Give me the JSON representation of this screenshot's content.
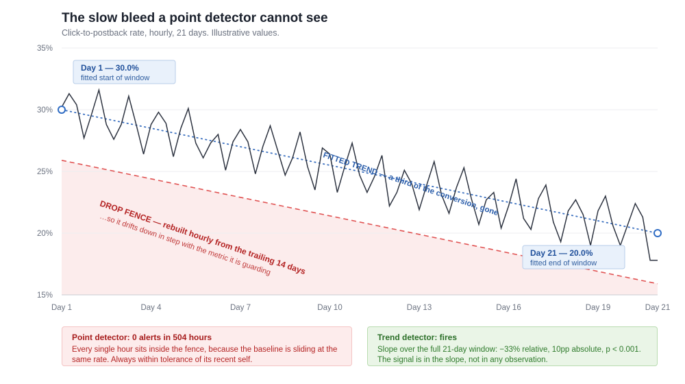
{
  "chart_data": {
    "type": "line",
    "title": "The slow bleed a point detector cannot see",
    "subtitle": "Click-to-postback rate, hourly, 21 days. Illustrative values.",
    "xlabel": "",
    "ylabel": "",
    "xlim": [
      1,
      21
    ],
    "ylim": [
      15,
      35
    ],
    "y_ticks": [
      15,
      20,
      25,
      30,
      35
    ],
    "y_tick_labels": [
      "15%",
      "20%",
      "25%",
      "30%",
      "35%"
    ],
    "x_ticks": [
      1,
      4,
      7,
      10,
      13,
      16,
      19,
      21
    ],
    "x_tick_labels": [
      "Day 1",
      "Day 4",
      "Day 7",
      "Day 10",
      "Day 13",
      "Day 16",
      "Day 19",
      "Day 21"
    ],
    "grid": "horizontal",
    "series": [
      {
        "role": "observed",
        "color": "#2d3340",
        "x": [
          1,
          1.25,
          1.5,
          1.75,
          2,
          2.25,
          2.5,
          2.75,
          3,
          3.25,
          3.5,
          3.75,
          4,
          4.25,
          4.5,
          4.75,
          5,
          5.25,
          5.5,
          5.75,
          6,
          6.25,
          6.5,
          6.75,
          7,
          7.25,
          7.5,
          7.75,
          8,
          8.25,
          8.5,
          8.75,
          9,
          9.25,
          9.5,
          9.75,
          10,
          10.25,
          10.5,
          10.75,
          11,
          11.25,
          11.5,
          11.75,
          12,
          12.25,
          12.5,
          12.75,
          13,
          13.25,
          13.5,
          13.75,
          14,
          14.25,
          14.5,
          14.75,
          15,
          15.25,
          15.5,
          15.75,
          16,
          16.25,
          16.5,
          16.75,
          17,
          17.25,
          17.5,
          17.75,
          18,
          18.25,
          18.5,
          18.75,
          19,
          19.25,
          19.5,
          19.75,
          20,
          20.25,
          20.5,
          20.75,
          21
        ],
        "y": [
          30.2,
          31.3,
          30.4,
          27.7,
          29.6,
          31.6,
          28.8,
          27.6,
          28.8,
          31.1,
          28.8,
          26.4,
          28.8,
          29.8,
          28.9,
          26.2,
          28.5,
          30.1,
          27.3,
          26.1,
          27.3,
          28.0,
          25.1,
          27.4,
          28.4,
          27.4,
          24.8,
          27.0,
          28.7,
          26.7,
          24.7,
          26.1,
          28.2,
          25.4,
          23.5,
          26.9,
          26.4,
          23.3,
          25.4,
          27.3,
          24.7,
          23.3,
          24.6,
          26.3,
          22.2,
          23.3,
          25.1,
          24.0,
          21.9,
          23.9,
          25.8,
          23.1,
          21.6,
          23.7,
          25.3,
          22.8,
          20.7,
          22.7,
          23.3,
          20.4,
          22.2,
          24.4,
          21.2,
          20.3,
          22.8,
          23.9,
          20.9,
          19.3,
          21.8,
          22.7,
          21.5,
          19.0,
          21.8,
          23.0,
          20.6,
          19.0,
          20.7,
          22.4,
          21.3,
          17.8,
          17.8
        ]
      },
      {
        "role": "fitted-trend",
        "color": "#3a6fbf",
        "x": [
          1,
          21
        ],
        "y": [
          30.0,
          20.0
        ]
      },
      {
        "role": "drop-fence",
        "color": "#e05252",
        "x": [
          1,
          21
        ],
        "y": [
          25.9,
          15.9
        ]
      }
    ],
    "annotations": [
      {
        "id": "start",
        "title": "Day 1 — 30.0%",
        "text": "fitted start of window",
        "x": 1,
        "y": 30.0
      },
      {
        "id": "end",
        "title": "Day 21 — 20.0%",
        "text": "fitted end of window",
        "x": 21,
        "y": 20.0
      },
      {
        "id": "trend",
        "text": "FITTED TREND — a third of the conversion, gone"
      },
      {
        "id": "fence",
        "text": "DROP FENCE — rebuilt hourly from the trailing 14 days",
        "subtext": "…so it drifts down in step with the metric it is guarding"
      }
    ]
  },
  "panels": {
    "point": {
      "title": "Point detector: 0 alerts in 504 hours",
      "body": "Every single hour sits inside the fence, because the baseline is sliding at the same rate. Always within tolerance of its recent self."
    },
    "trend": {
      "title": "Trend detector: fires",
      "body": "Slope over the full 21-day window: −33% relative, 10pp absolute, p < 0.001. The signal is in the slope, not in any observation."
    }
  }
}
